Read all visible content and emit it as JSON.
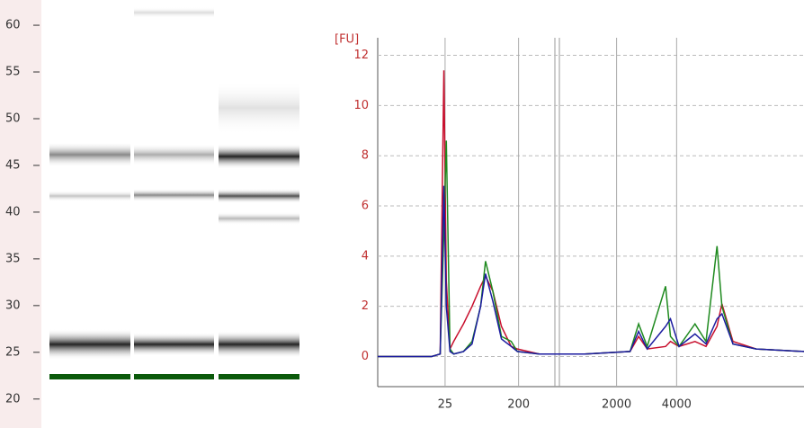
{
  "chart_data": [
    {
      "type": "gel",
      "ylim": [
        16.9,
        62.7
      ],
      "yticks": [
        20,
        25,
        30,
        35,
        40,
        45,
        50,
        55,
        60
      ]
    },
    {
      "type": "line",
      "y_label": "[FU]",
      "x": [
        17.0,
        21.4,
        22.1,
        22.4,
        22.6,
        22.9,
        23.2,
        24.0,
        24.7,
        25.4,
        25.8,
        26.4,
        27.1,
        27.9,
        28.4,
        30.2,
        33.9,
        37.6,
        38.3,
        39.0,
        40.5,
        40.9,
        41.6,
        42.9,
        43.8,
        44.7,
        45.1,
        46.0,
        47.9,
        51.8
      ],
      "xlim": [
        17.0,
        51.8
      ],
      "xticks": [
        {
          "value": 22.5,
          "label": "25"
        },
        {
          "value": 28.5,
          "label": "200"
        },
        {
          "value": 36.5,
          "label": "2000"
        },
        {
          "value": 41.4,
          "label": "4000"
        }
      ],
      "ylim": [
        -1.2,
        12.7
      ],
      "yticks": [
        0,
        2,
        4,
        6,
        8,
        10,
        12
      ],
      "grid": true,
      "series": [
        {
          "color": "#c8102e",
          "values": [
            0,
            0,
            0.1,
            11.4,
            3,
            0.3,
            0.6,
            1.3,
            2.0,
            2.8,
            3.2,
            2.6,
            1.2,
            0.4,
            0.3,
            0.1,
            0.1,
            0.2,
            0.8,
            0.3,
            0.4,
            0.6,
            0.4,
            0.6,
            0.4,
            1.2,
            2.1,
            0.6,
            0.3,
            0.2
          ]
        },
        {
          "color": "#1f8a1f",
          "values": [
            0,
            0,
            0.1,
            5,
            8.6,
            0.3,
            0.1,
            0.2,
            0.6,
            2.0,
            3.8,
            2.6,
            0.8,
            0.6,
            0.2,
            0.1,
            0.1,
            0.2,
            1.3,
            0.4,
            2.8,
            0.8,
            0.4,
            1.3,
            0.6,
            4.4,
            2.0,
            0.5,
            0.3,
            0.2
          ]
        },
        {
          "color": "#1c1ca0",
          "values": [
            0,
            0,
            0.1,
            6.8,
            2,
            0.2,
            0.1,
            0.2,
            0.5,
            2.0,
            3.3,
            2.2,
            0.7,
            0.4,
            0.2,
            0.1,
            0.1,
            0.2,
            1.0,
            0.3,
            1.2,
            1.5,
            0.4,
            0.9,
            0.5,
            1.5,
            1.7,
            0.5,
            0.3,
            0.2
          ]
        }
      ]
    }
  ]
}
